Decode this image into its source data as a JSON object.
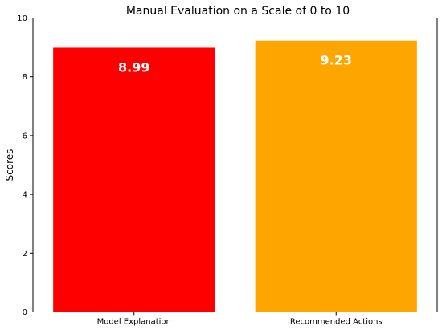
{
  "chart_data": {
    "type": "bar",
    "title": "Manual Evaluation on a Scale of 0 to 10",
    "xlabel": "",
    "ylabel": "Scores",
    "categories": [
      "Model Explanation",
      "Recommended Actions"
    ],
    "values": [
      8.99,
      9.23
    ],
    "data_labels": [
      "8.99",
      "9.23"
    ],
    "colors": [
      "#ff0000",
      "#ffa500"
    ],
    "label_color": "#ffffff",
    "ylim": [
      0,
      10
    ],
    "yticks": [
      0,
      2,
      4,
      6,
      8,
      10
    ],
    "ytick_labels": [
      "0",
      "2",
      "4",
      "6",
      "8",
      "10"
    ],
    "grid": false,
    "legend": "none"
  }
}
